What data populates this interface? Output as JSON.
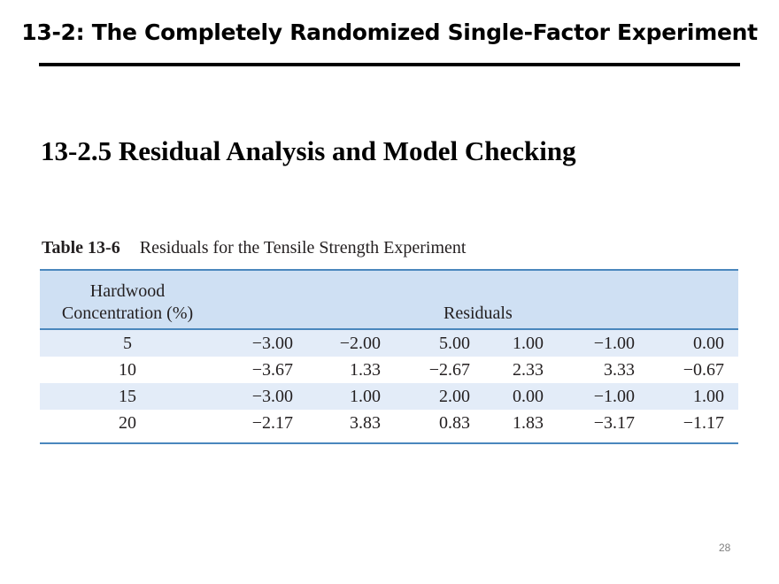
{
  "slide": {
    "title": "13-2: The Completely Randomized Single-Factor Experiment",
    "section_heading": "13-2.5 Residual Analysis and Model Checking",
    "page_number": "28"
  },
  "table": {
    "caption_number": "Table 13-6",
    "caption_text": "Residuals for the Tensile Strength Experiment",
    "header_factor_line1": "Hardwood",
    "header_factor_line2": "Concentration (%)",
    "header_residuals": "Residuals",
    "rows": [
      {
        "concentration": "5",
        "residuals": [
          "−3.00",
          "−2.00",
          "5.00",
          "1.00",
          "−1.00",
          "0.00"
        ]
      },
      {
        "concentration": "10",
        "residuals": [
          "−3.67",
          "1.33",
          "−2.67",
          "2.33",
          "3.33",
          "−0.67"
        ]
      },
      {
        "concentration": "15",
        "residuals": [
          "−3.00",
          "1.00",
          "2.00",
          "0.00",
          "−1.00",
          "1.00"
        ]
      },
      {
        "concentration": "20",
        "residuals": [
          "−2.17",
          "3.83",
          "0.83",
          "1.83",
          "−3.17",
          "−1.17"
        ]
      }
    ]
  },
  "colors": {
    "header_band": "#cfe0f3",
    "shaded_row": "#e3ecf8",
    "table_rules": "#4a87bd"
  }
}
